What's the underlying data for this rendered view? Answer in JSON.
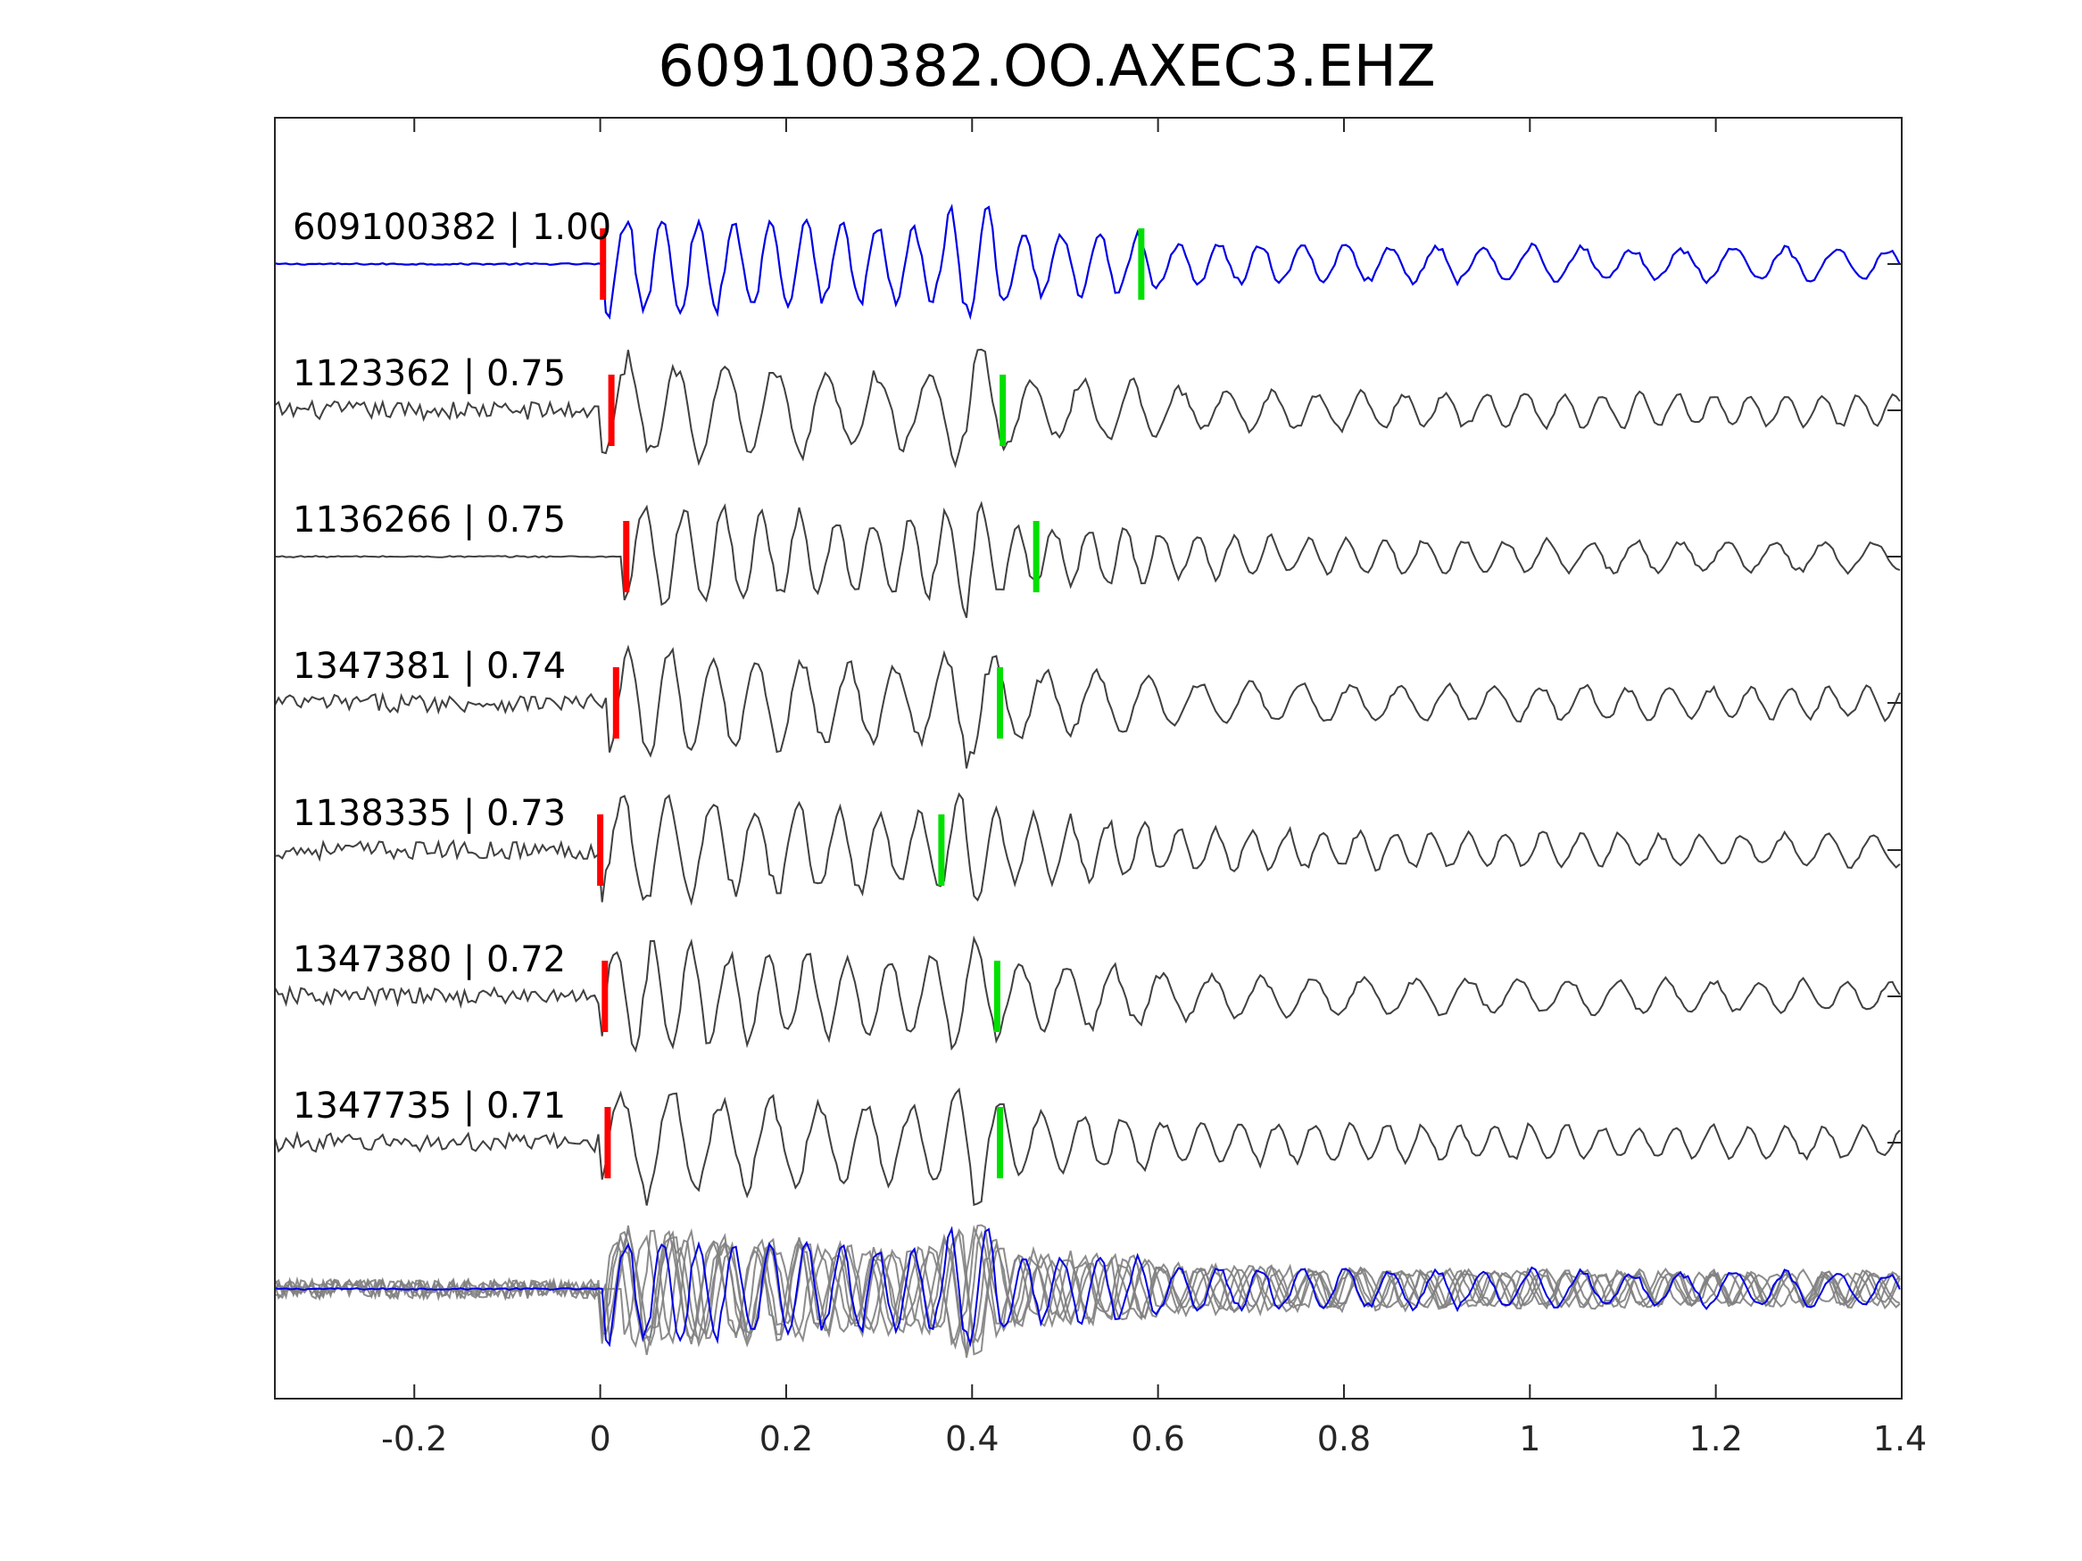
{
  "chart_data": {
    "type": "line",
    "title": "609100382.OO.AXEC3.EHZ",
    "xlabel": "",
    "ylabel": "",
    "xlim": [
      -0.35,
      1.4
    ],
    "xticks": [
      -0.2,
      0,
      0.2,
      0.4,
      0.6,
      0.8,
      1,
      1.2,
      1.4
    ],
    "xtick_labels": [
      "-0.2",
      "0",
      "0.2",
      "0.4",
      "0.6",
      "0.8",
      "1",
      "1.2",
      "1.4"
    ],
    "grid": false,
    "colors": {
      "template": "#0000e6",
      "match": "#404040",
      "stack_match": "#808080",
      "p_pick": "#ff0000",
      "s_pick": "#00e000"
    },
    "traces": [
      {
        "id": "609100382",
        "cc": "1.00",
        "label": "609100382 | 1.00",
        "color": "template",
        "p_pick": 0.003,
        "s_pick": 0.582,
        "onset": 0.005
      },
      {
        "id": "1123362",
        "cc": "0.75",
        "label": "1123362 | 0.75",
        "color": "match",
        "p_pick": 0.012,
        "s_pick": 0.433,
        "onset": 0.0
      },
      {
        "id": "1136266",
        "cc": "0.75",
        "label": "1136266 | 0.75",
        "color": "match",
        "p_pick": 0.028,
        "s_pick": 0.469,
        "onset": 0.025
      },
      {
        "id": "1347381",
        "cc": "0.74",
        "label": "1347381 | 0.74",
        "color": "match",
        "p_pick": 0.017,
        "s_pick": 0.43,
        "onset": 0.01
      },
      {
        "id": "1138335",
        "cc": "0.73",
        "label": "1138335 | 0.73",
        "color": "match",
        "p_pick": 0.0,
        "s_pick": 0.367,
        "onset": 0.0
      },
      {
        "id": "1347380",
        "cc": "0.72",
        "label": "1347380 | 0.72",
        "color": "match",
        "p_pick": 0.005,
        "s_pick": 0.427,
        "onset": 0.0
      },
      {
        "id": "1347735",
        "cc": "0.71",
        "label": "1347735 | 0.71",
        "color": "match",
        "p_pick": 0.008,
        "s_pick": 0.43,
        "onset": 0.0
      }
    ],
    "stack": {
      "label": "",
      "overlay_of": "all traces"
    }
  }
}
